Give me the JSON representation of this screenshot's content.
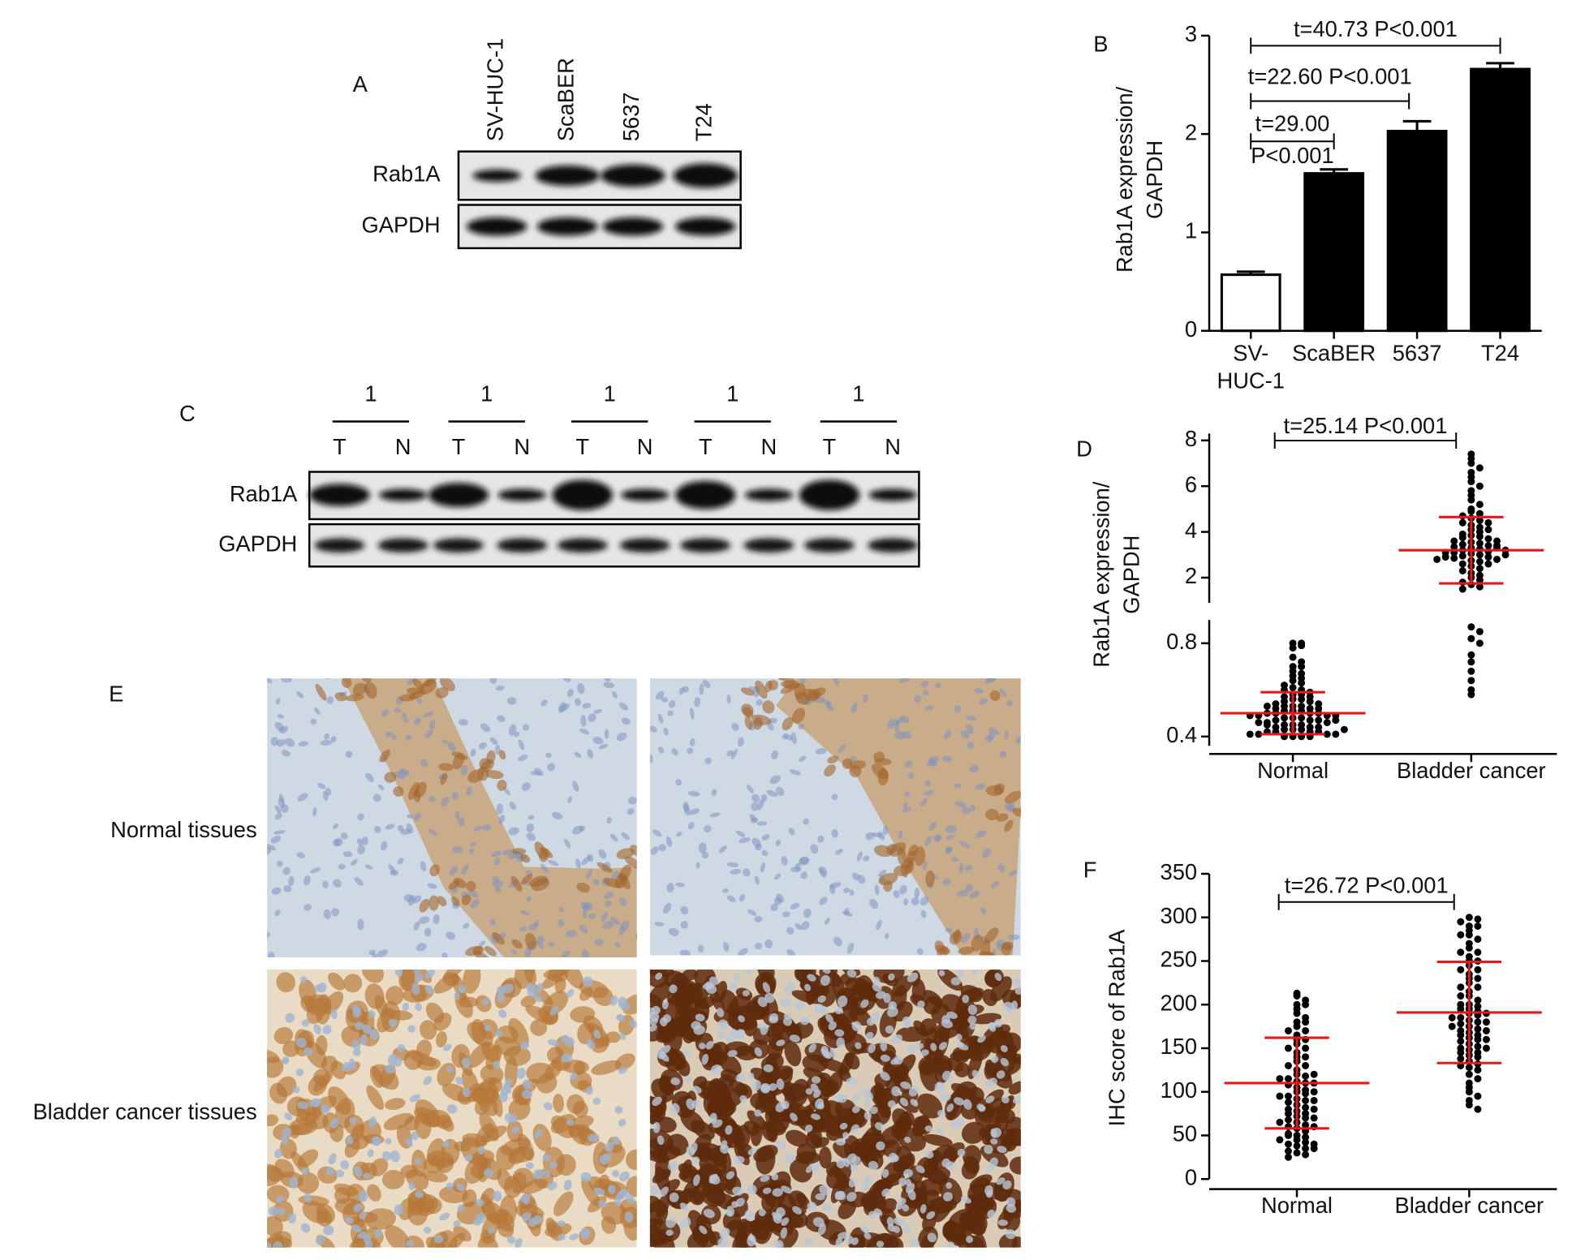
{
  "panel_labels": [
    "A",
    "B",
    "C",
    "D",
    "E",
    "F"
  ],
  "blot_a": {
    "lanes": [
      "SV-HUC-1",
      "ScaBER",
      "5637",
      "T24"
    ],
    "rows": [
      "Rab1A",
      "GAPDH"
    ]
  },
  "blot_c": {
    "pairs": [
      "1",
      "1",
      "1",
      "1",
      "1"
    ],
    "lanes": [
      "T",
      "N",
      "T",
      "N",
      "T",
      "N",
      "T",
      "N",
      "T",
      "N"
    ],
    "rows": [
      "Rab1A",
      "GAPDH"
    ]
  },
  "ihc": {
    "rows": [
      "Normal tissues",
      "Bladder cancer tissues"
    ]
  },
  "chart_data": [
    {
      "type": "bar",
      "categories": [
        "SV-\nHUC-1",
        "ScaBER",
        "5637",
        "T24"
      ],
      "values": [
        0.57,
        1.6,
        2.03,
        2.66
      ],
      "errors": [
        0.03,
        0.04,
        0.1,
        0.06
      ],
      "colors": [
        "#ffffff",
        "#000000",
        "#000000",
        "#000000"
      ],
      "ylabel": "Rab1A expression/\nGAPDH",
      "ylim": [
        0,
        3
      ],
      "yticks": [
        0,
        1,
        2,
        3
      ],
      "annotations": [
        "t=40.73 P<0.001",
        "t=22.60 P<0.001",
        "t=29.00\nP<0.001"
      ]
    },
    {
      "type": "dot_plot",
      "ylabel": "Rab1A expression/\nGAPDH",
      "segments": [
        {
          "ylim": [
            0.36,
            0.9
          ],
          "yticks": [
            0.4,
            0.8
          ]
        },
        {
          "ylim": [
            0.9,
            8.3
          ],
          "yticks": [
            2,
            4,
            6,
            8
          ]
        }
      ],
      "annotation": "t=25.14 P<0.001",
      "color": "#000000",
      "summary_color": "#e31a1c",
      "groups": [
        {
          "name": "Normal",
          "mean": 0.5,
          "sd": 0.09,
          "values": [
            0.8,
            0.78,
            0.79,
            0.8,
            0.74,
            0.72,
            0.7,
            0.7,
            0.68,
            0.67,
            0.66,
            0.65,
            0.64,
            0.63,
            0.62,
            0.61,
            0.6,
            0.6,
            0.59,
            0.58,
            0.58,
            0.57,
            0.56,
            0.56,
            0.55,
            0.55,
            0.54,
            0.54,
            0.53,
            0.53,
            0.53,
            0.52,
            0.52,
            0.52,
            0.51,
            0.51,
            0.51,
            0.5,
            0.5,
            0.5,
            0.5,
            0.49,
            0.49,
            0.49,
            0.48,
            0.48,
            0.48,
            0.47,
            0.47,
            0.47,
            0.46,
            0.46,
            0.46,
            0.45,
            0.45,
            0.45,
            0.44,
            0.44,
            0.44,
            0.43,
            0.43,
            0.43,
            0.42,
            0.42,
            0.42,
            0.42,
            0.41,
            0.41,
            0.41,
            0.41,
            0.4,
            0.4,
            0.4,
            0.4,
            0.57,
            0.53,
            0.49,
            0.47,
            0.45,
            0.43
          ]
        },
        {
          "name": "Bladder cancer",
          "mean": 3.2,
          "sd": 1.45,
          "values": [
            7.4,
            7.2,
            7.0,
            6.8,
            6.6,
            6.4,
            6.2,
            6.0,
            5.8,
            5.6,
            5.4,
            5.2,
            5.0,
            4.9,
            4.8,
            4.7,
            4.6,
            4.5,
            4.4,
            4.3,
            4.2,
            4.1,
            4.0,
            3.9,
            3.85,
            3.8,
            3.75,
            3.7,
            3.6,
            3.55,
            3.5,
            3.45,
            3.4,
            3.35,
            3.3,
            3.25,
            3.2,
            3.15,
            3.1,
            3.05,
            3.0,
            2.95,
            2.9,
            2.85,
            2.8,
            2.75,
            2.7,
            2.6,
            2.5,
            2.4,
            2.3,
            2.2,
            2.1,
            2.0,
            1.9,
            1.8,
            1.7,
            1.6,
            1.5,
            3.6,
            3.3,
            3.1,
            2.9,
            3.4,
            3.2,
            3.0,
            4.1,
            4.4,
            2.6,
            2.8,
            0.87,
            0.85,
            0.82,
            0.8,
            0.75,
            0.72,
            0.68,
            0.64,
            0.6,
            0.58
          ]
        }
      ]
    },
    {
      "type": "dot_plot",
      "ylabel": "IHC score of Rab1A",
      "ylim": [
        0,
        350
      ],
      "yticks": [
        0,
        50,
        100,
        150,
        200,
        250,
        300,
        350
      ],
      "annotation": "t=26.72 P<0.001",
      "color": "#000000",
      "summary_color": "#e31a1c",
      "groups": [
        {
          "name": "Normal",
          "mean": 110,
          "sd": 52,
          "values": [
            213,
            210,
            205,
            200,
            195,
            190,
            185,
            180,
            175,
            170,
            165,
            160,
            155,
            150,
            145,
            140,
            135,
            130,
            125,
            120,
            118,
            115,
            112,
            110,
            108,
            105,
            102,
            100,
            98,
            95,
            92,
            90,
            88,
            85,
            82,
            80,
            78,
            75,
            72,
            70,
            68,
            65,
            62,
            60,
            58,
            55,
            52,
            50,
            48,
            45,
            42,
            40,
            38,
            35,
            32,
            30,
            28,
            25,
            150,
            130,
            110,
            100,
            90,
            80,
            70,
            60,
            50,
            40,
            120,
            140,
            160,
            180,
            200,
            115,
            95,
            75,
            65,
            45,
            35,
            170
          ]
        },
        {
          "name": "Bladder cancer",
          "mean": 191,
          "sd": 58,
          "values": [
            300,
            298,
            295,
            290,
            285,
            280,
            275,
            270,
            265,
            260,
            255,
            250,
            245,
            240,
            235,
            230,
            225,
            220,
            215,
            210,
            205,
            200,
            198,
            195,
            192,
            190,
            188,
            185,
            182,
            180,
            178,
            175,
            172,
            170,
            168,
            165,
            162,
            160,
            158,
            155,
            152,
            150,
            148,
            145,
            142,
            140,
            138,
            135,
            132,
            130,
            128,
            125,
            120,
            115,
            110,
            105,
            100,
            95,
            90,
            85,
            80,
            260,
            240,
            220,
            200,
            190,
            180,
            170,
            160,
            150,
            230,
            210,
            195,
            185,
            175,
            165,
            145,
            250,
            280,
            290
          ]
        }
      ]
    }
  ]
}
